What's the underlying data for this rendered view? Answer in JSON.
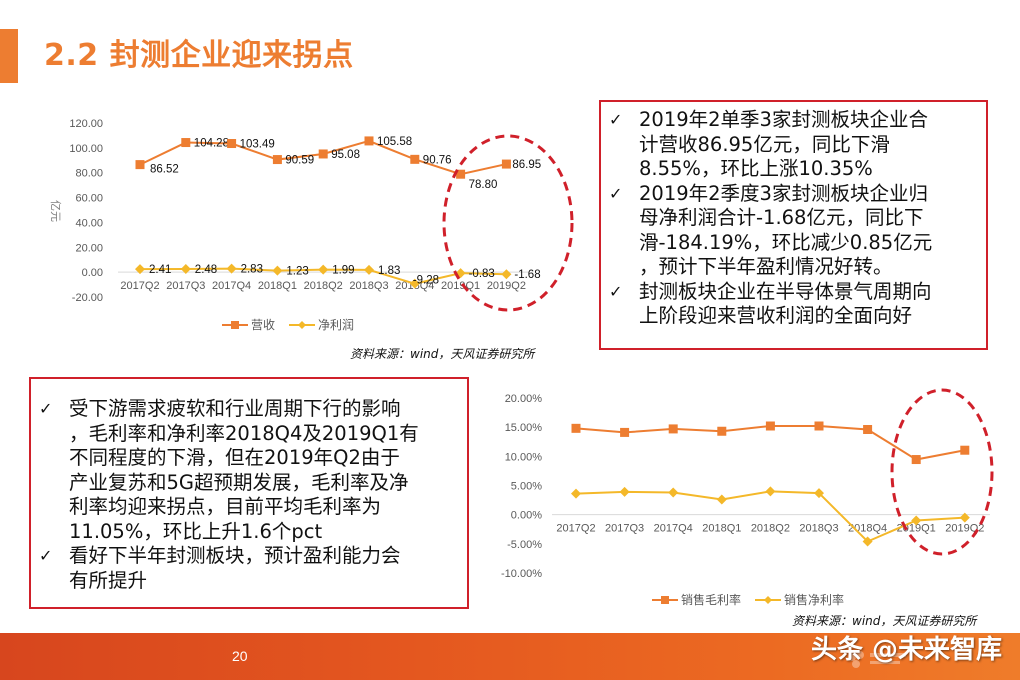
{
  "page": {
    "title": "2.2 封测企业迎来拐点",
    "page_number": "20",
    "watermark": "头条 @未来智库"
  },
  "colors": {
    "accent": "#ed7d31",
    "net_line": "#f4b829",
    "highlight_red": "#d0202a",
    "footer_start": "#d7461e",
    "footer_end": "#ef7c2a"
  },
  "chart1_text": {
    "legend": [
      "营收",
      "净利润"
    ],
    "source": "资料来源：wind，天风证券研究所",
    "ylabel": "亿元",
    "yticks": [
      "120.00",
      "100.00",
      "80.00",
      "60.00",
      "40.00",
      "20.00",
      "0.00",
      "-20.00"
    ]
  },
  "chart2_text": {
    "legend": [
      "销售毛利率",
      "销售净利率"
    ],
    "source": "资料来源：wind，天风证券研究所",
    "yticks": [
      "20.00%",
      "15.00%",
      "10.00%",
      "5.00%",
      "0.00%",
      "-5.00%",
      "-10.00%"
    ]
  },
  "chart_data": [
    {
      "type": "line",
      "title": "",
      "xlabel": "",
      "ylabel": "亿元",
      "categories": [
        "2017Q2",
        "2017Q3",
        "2017Q4",
        "2018Q1",
        "2018Q2",
        "2018Q3",
        "2018Q4",
        "2019Q1",
        "2019Q2"
      ],
      "series": [
        {
          "name": "营收",
          "values": [
            86.52,
            104.28,
            103.49,
            90.59,
            95.08,
            105.58,
            90.76,
            78.8,
            86.95
          ],
          "labels": [
            "86.52",
            "104.28",
            "103.49",
            "90.59",
            "95.08",
            "105.58",
            "90.76",
            "78.80",
            "86.95"
          ],
          "color": "#ed7d31",
          "marker": "square"
        },
        {
          "name": "净利润",
          "values": [
            2.41,
            2.48,
            2.83,
            1.23,
            1.99,
            1.83,
            -9.28,
            -0.83,
            -1.68
          ],
          "labels": [
            "2.41",
            "2.48",
            "2.83",
            "1.23",
            "1.99",
            "1.83",
            "-9.28",
            "-0.83",
            "-1.68"
          ],
          "color": "#f4b829",
          "marker": "diamond"
        }
      ],
      "ylim": [
        -20,
        120
      ],
      "grid": false,
      "legend_position": "bottom",
      "annotations": [
        "red dashed ellipse highlighting 2019Q1–2019Q2"
      ]
    },
    {
      "type": "line",
      "title": "",
      "xlabel": "",
      "ylabel": "",
      "categories": [
        "2017Q2",
        "2017Q3",
        "2017Q4",
        "2018Q1",
        "2018Q2",
        "2018Q3",
        "2018Q4",
        "2019Q1",
        "2019Q2"
      ],
      "series": [
        {
          "name": "销售毛利率",
          "values": [
            14.8,
            14.1,
            14.7,
            14.3,
            15.2,
            15.2,
            14.6,
            9.45,
            11.05
          ],
          "color": "#ed7d31",
          "marker": "square"
        },
        {
          "name": "销售净利率",
          "values": [
            3.6,
            3.9,
            3.8,
            2.6,
            4.0,
            3.7,
            -4.6,
            -1.0,
            -0.5
          ],
          "color": "#f4b829",
          "marker": "diamond"
        }
      ],
      "unit": "%",
      "ylim": [
        -10,
        20
      ],
      "grid": false,
      "legend_position": "bottom",
      "annotations": [
        "red dashed ellipse highlighting 2019Q1–2019Q2"
      ]
    }
  ],
  "box_top_right": {
    "items": [
      {
        "lines": [
          "2019年2单季3家封测板块企业合",
          "计营收86.95亿元，同比下滑",
          "8.55%，环比上涨10.35%"
        ]
      },
      {
        "lines": [
          "2019年2季度3家封测板块企业归",
          "母净利润合计-1.68亿元，同比下",
          "滑-184.19%，环比减少0.85亿元",
          "，预计下半年盈利情况好转。"
        ]
      },
      {
        "lines": [
          "封测板块企业在半导体景气周期向",
          "上阶段迎来营收利润的全面向好"
        ]
      }
    ]
  },
  "box_bottom_left": {
    "items": [
      {
        "lines": [
          "受下游需求疲软和行业周期下行的影响",
          "，毛利率和净利率2018Q4及2019Q1有",
          "不同程度的下滑，但在2019年Q2由于",
          "产业复苏和5G超预期发展，毛利率及净",
          "利率均迎来拐点，目前平均毛利率为",
          "11.05%，环比上升1.6个pct"
        ]
      },
      {
        "lines": [
          "看好下半年封测板块，预计盈利能力会",
          "有所提升"
        ]
      }
    ]
  },
  "check_glyph": "✓"
}
